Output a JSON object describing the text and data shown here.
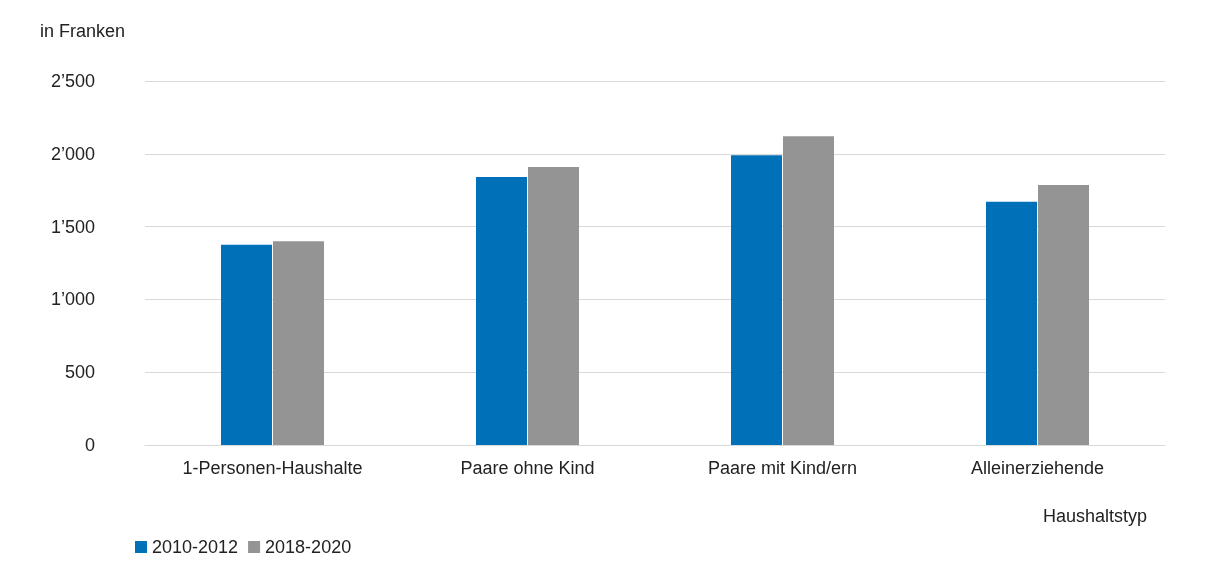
{
  "chart_data": {
    "type": "bar",
    "ylabel": "in Franken",
    "xlabel": "Haushaltstyp",
    "categories": [
      "1-Personen-Haushalte",
      "Paare ohne Kind",
      "Paare mit Kind/ern",
      "Alleinerziehende"
    ],
    "series": [
      {
        "name": "2010-2012",
        "color": "#0070b8",
        "values": [
          1375,
          1840,
          1990,
          1670
        ]
      },
      {
        "name": "2018-2020",
        "color": "#949494",
        "values": [
          1400,
          1910,
          2120,
          1785
        ]
      }
    ],
    "ylim": [
      0,
      2500
    ],
    "yticks": [
      0,
      500,
      {
        "value": 1000,
        "label": "1’000"
      },
      {
        "value": 1500,
        "label": "1’500"
      },
      {
        "value": 2000,
        "label": "2’000"
      },
      {
        "value": 2500,
        "label": "2’500"
      }
    ],
    "grid": "y",
    "legend": "bottom left"
  }
}
